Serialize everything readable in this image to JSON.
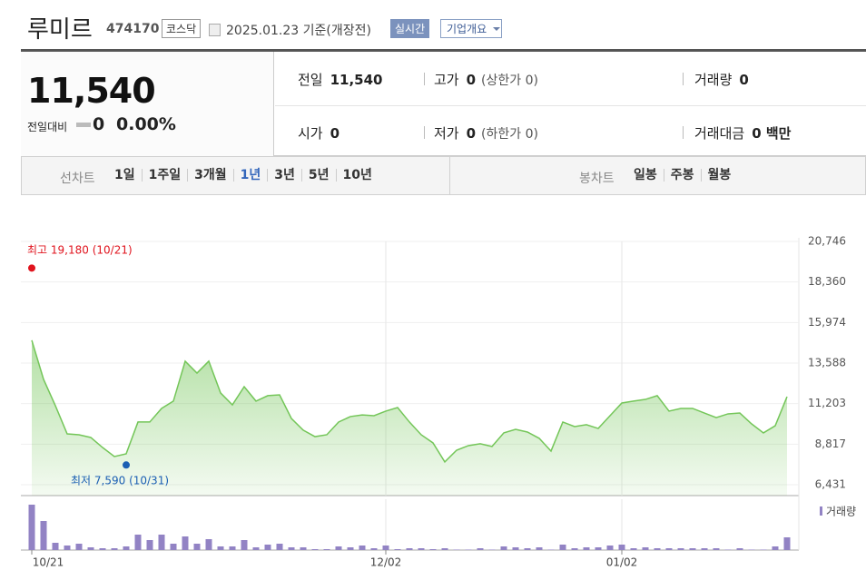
{
  "header": {
    "title": "루미르",
    "code": "474170",
    "market": "코스닥",
    "date": "2025.01.23 기준(개장전)",
    "buttons": [
      "실시간",
      "기업개요"
    ]
  },
  "summary": {
    "price": "11,540",
    "change_label": "전일대비",
    "change": "0",
    "change_rate": "0.00%",
    "stats": [
      {
        "label": "전일",
        "value": "11,540"
      },
      {
        "label": "고가",
        "value": "0",
        "sub": "(상한가 0)"
      },
      {
        "label": "거래량",
        "value": "0"
      },
      {
        "label": "시가",
        "value": "0"
      },
      {
        "label": "저가",
        "value": "0",
        "sub": "(하한가 0)"
      },
      {
        "label": "거래대금",
        "value": "0 백만"
      }
    ]
  },
  "tabs": {
    "line_chart": {
      "label": "선차트",
      "items": [
        "1일",
        "1주일",
        "3개월",
        "1년",
        "3년",
        "5년",
        "10년"
      ],
      "selected": "1년"
    },
    "candle_chart": {
      "label": "봉차트",
      "items": [
        "일봉",
        "주봉",
        "월봉"
      ]
    }
  },
  "chart_data": [
    {
      "type": "area",
      "color": "#74c659",
      "categories": [
        "10/21",
        null,
        null,
        null,
        null,
        null,
        null,
        null,
        null,
        null,
        null,
        null,
        null,
        null,
        null,
        null,
        null,
        null,
        null,
        null,
        null,
        null,
        null,
        null,
        null,
        null,
        null,
        null,
        null,
        null,
        "12/02",
        null,
        null,
        null,
        null,
        null,
        null,
        null,
        null,
        null,
        null,
        null,
        null,
        null,
        null,
        null,
        null,
        null,
        null,
        null,
        "01/02",
        null,
        null,
        null,
        null,
        null,
        null,
        null,
        null,
        null,
        null,
        null,
        null,
        null,
        null
      ],
      "values": [
        14930,
        12630,
        11080,
        9420,
        9370,
        9210,
        8620,
        8090,
        8250,
        10120,
        10120,
        10920,
        11350,
        13700,
        13000,
        13700,
        11830,
        11130,
        12200,
        11350,
        11670,
        11720,
        10330,
        9640,
        9260,
        9370,
        10120,
        10440,
        10540,
        10490,
        10760,
        10970,
        10120,
        9370,
        8890,
        7770,
        8460,
        8730,
        8840,
        8680,
        9480,
        9690,
        9530,
        9160,
        8410,
        10120,
        9850,
        9960,
        9740,
        10490,
        11240,
        11350,
        11450,
        11670,
        10760,
        10920,
        10920,
        10650,
        10380,
        10600,
        10650,
        10010,
        9480,
        9900,
        11610
      ],
      "ylim": [
        5790,
        20746
      ],
      "yticks": [
        {
          "value": 6431,
          "label": "6,431"
        },
        {
          "value": 8817,
          "label": "8,817"
        },
        {
          "value": 11203,
          "label": "11,203"
        },
        {
          "value": 13588,
          "label": "13,588"
        },
        {
          "value": 15974,
          "label": "15,974"
        },
        {
          "value": 18360,
          "label": "18,360"
        },
        {
          "value": 20746,
          "label": "20,746"
        }
      ],
      "grid": true,
      "annotations": [
        {
          "text": "최고 19,180 (10/21)",
          "value": 19180,
          "color": "#e0141e"
        },
        {
          "text": "최저 7,590 (10/31)",
          "value": 7590,
          "color": "#1b5fb3"
        }
      ]
    },
    {
      "type": "bar",
      "ylim": [
        0,
        100
      ],
      "series": [
        {
          "name": "거래량",
          "color": "#9283c4",
          "values": [
            100,
            64,
            16,
            10,
            14,
            6,
            4,
            4,
            8,
            34,
            22,
            34,
            14,
            30,
            14,
            24,
            8,
            8,
            22,
            6,
            12,
            14,
            6,
            6,
            2,
            2,
            8,
            6,
            10,
            4,
            10,
            2,
            4,
            4,
            2,
            4,
            1,
            1,
            4,
            1,
            8,
            6,
            4,
            6,
            1,
            12,
            4,
            6,
            6,
            10,
            12,
            4,
            6,
            4,
            4,
            4,
            4,
            4,
            4,
            1,
            4,
            1,
            1,
            8,
            28
          ]
        }
      ]
    }
  ]
}
